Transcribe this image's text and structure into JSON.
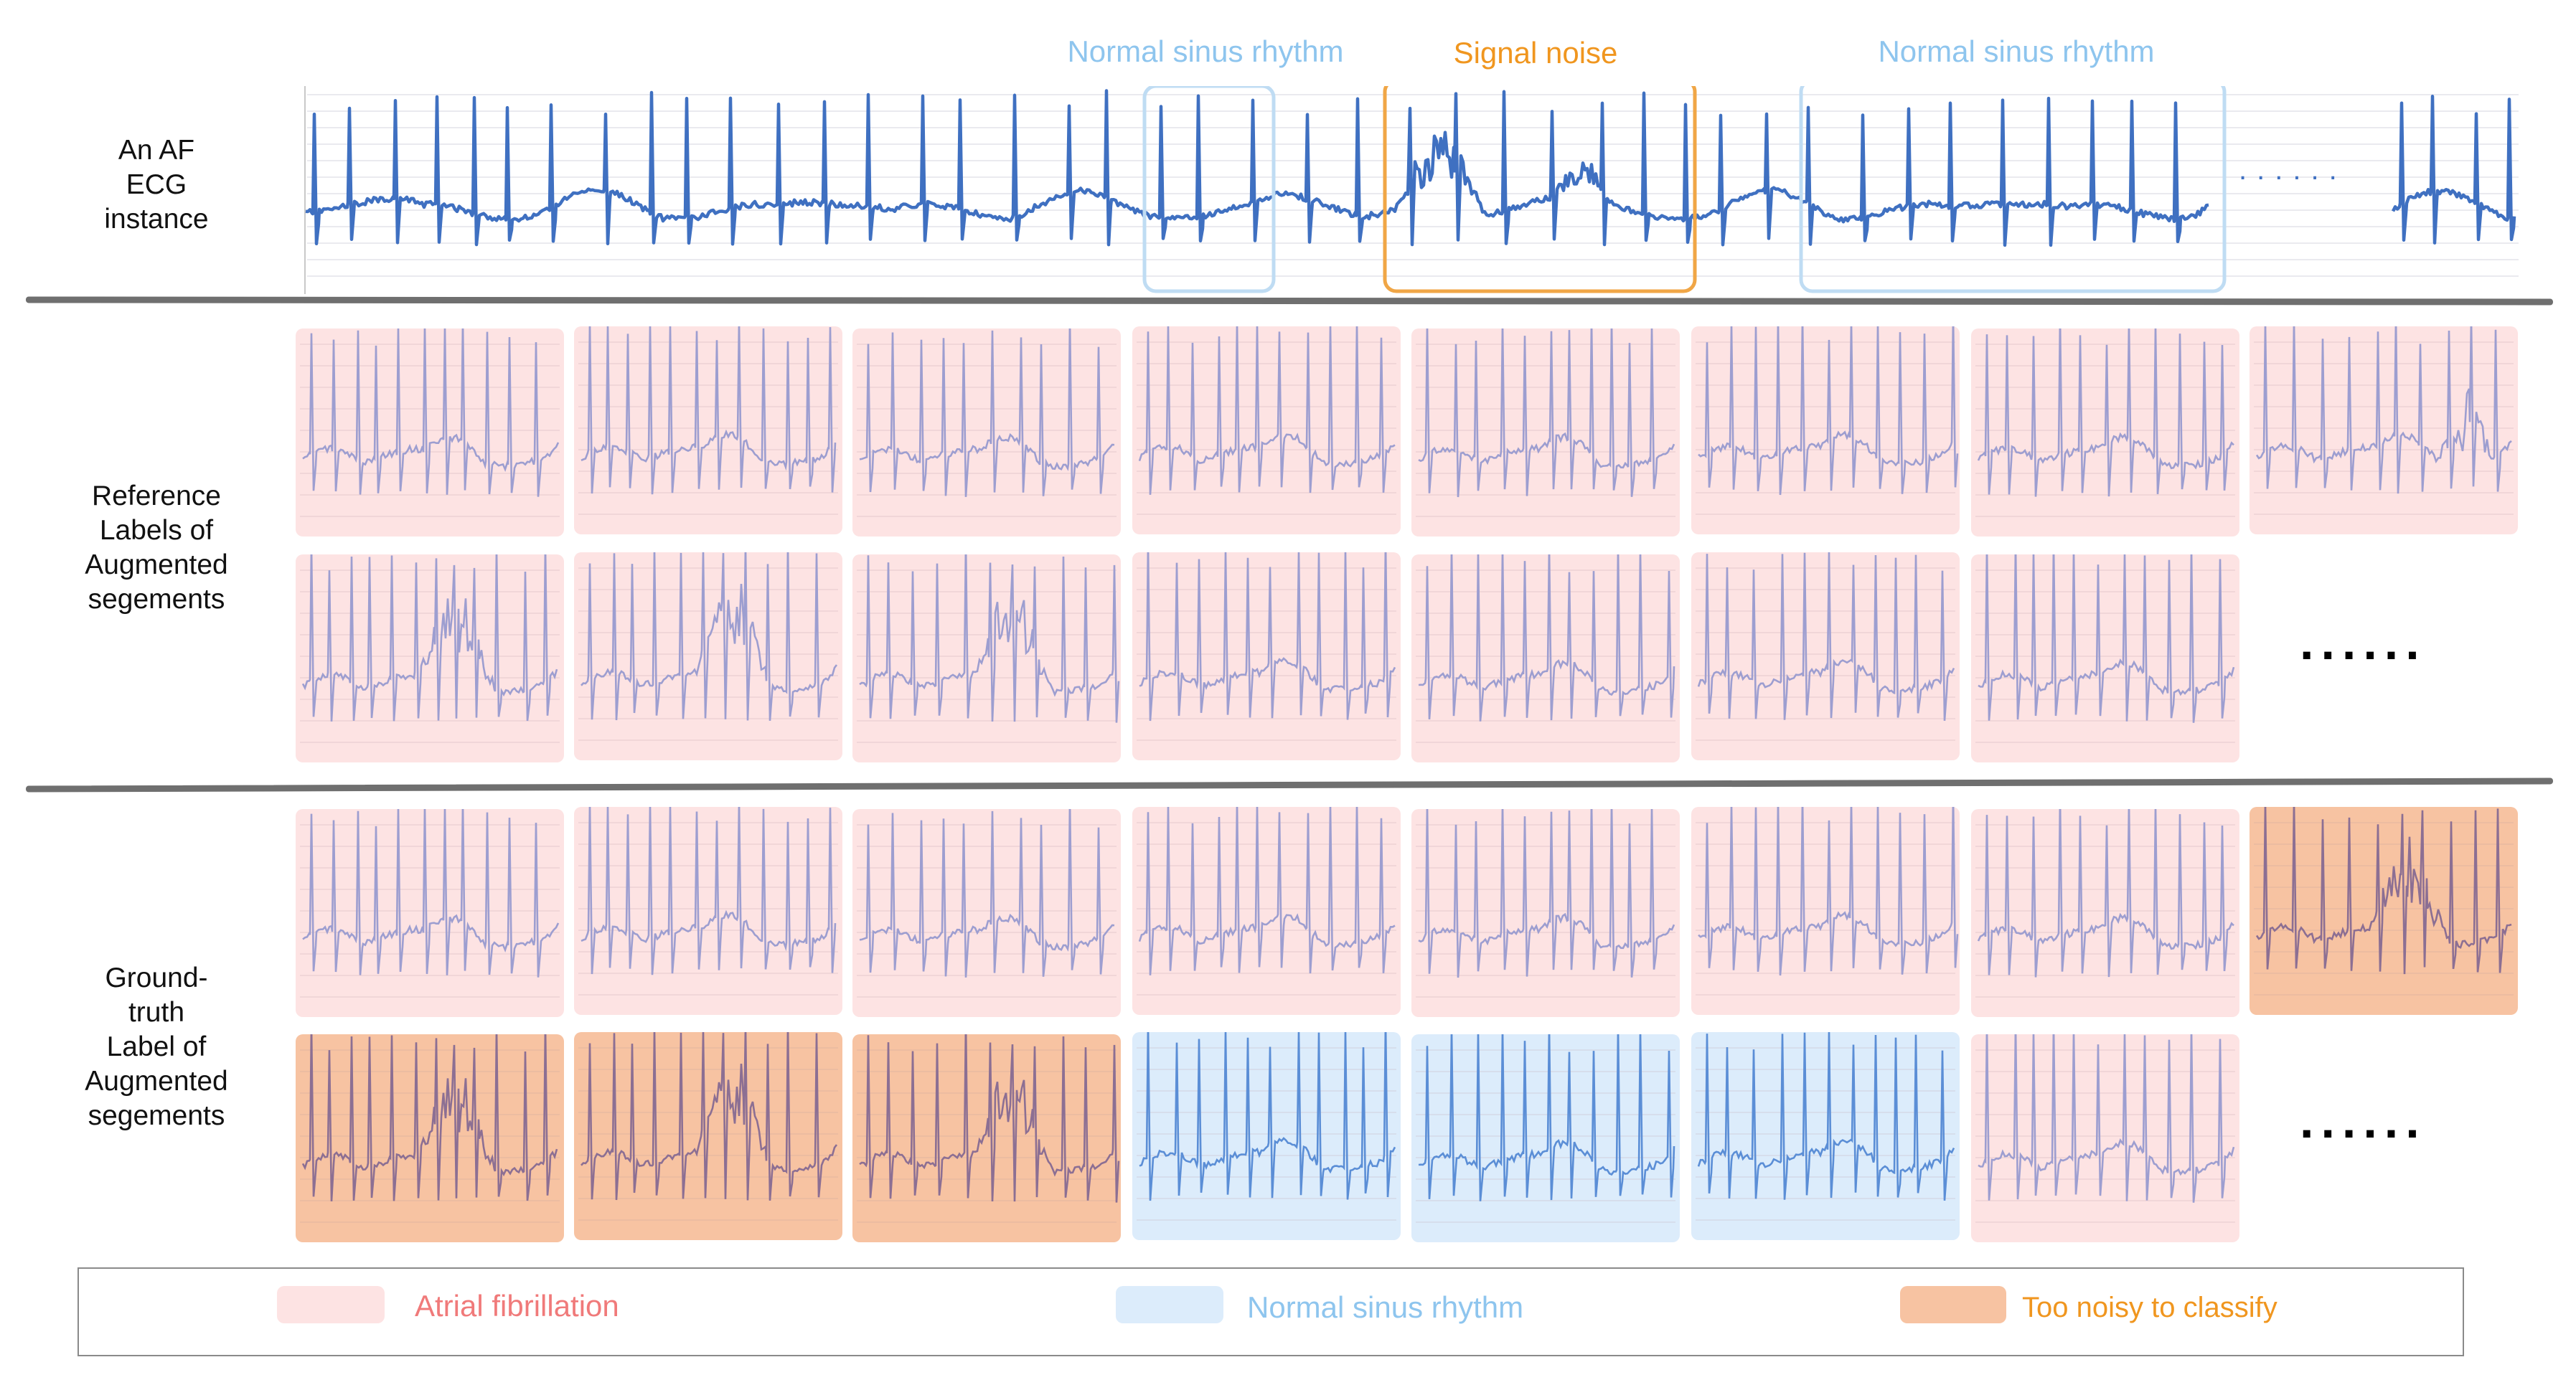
{
  "row_labels": {
    "instance": [
      "An AF",
      "ECG",
      "instance"
    ],
    "reference": [
      "Reference",
      "Labels of",
      "Augmented",
      "segements"
    ],
    "ground_truth": [
      "Ground-truth",
      "Label of",
      "Augmented",
      "segements"
    ]
  },
  "annotations": {
    "nsr_left": "Normal sinus rhythm",
    "noise": "Signal noise",
    "nsr_right": "Normal sinus rhythm"
  },
  "ellipsis": "......",
  "legend": {
    "af": "Atrial fibrillation",
    "nsr": "Normal sinus rhythm",
    "noisy": "Too noisy to classify"
  },
  "colors": {
    "af_fill": "#fde3e3",
    "nsr_fill": "#dcecfb",
    "noisy_fill": "#f7c3a2",
    "af_text": "#f07a7a",
    "nsr_text": "#8ec5ee",
    "noisy_text": "#f0961f",
    "ecg_main": "#3f70c1",
    "ecg_segment": "#9d9ed0",
    "ecg_noisy": "#8c6f93",
    "ecg_nsr": "#5b8ed6",
    "nsr_box": "#bfdcf3",
    "noise_box": "#f0a646"
  },
  "segments": {
    "reference_row1": [
      "af",
      "af",
      "af",
      "af",
      "af",
      "af",
      "af",
      "af"
    ],
    "reference_row2": [
      "af",
      "af",
      "af",
      "af",
      "af",
      "af",
      "af"
    ],
    "ground_truth_row1": [
      "af",
      "af",
      "af",
      "af",
      "af",
      "af",
      "af",
      "noisy"
    ],
    "ground_truth_row2": [
      "noisy",
      "noisy",
      "noisy",
      "nsr",
      "nsr",
      "nsr",
      "af"
    ]
  }
}
